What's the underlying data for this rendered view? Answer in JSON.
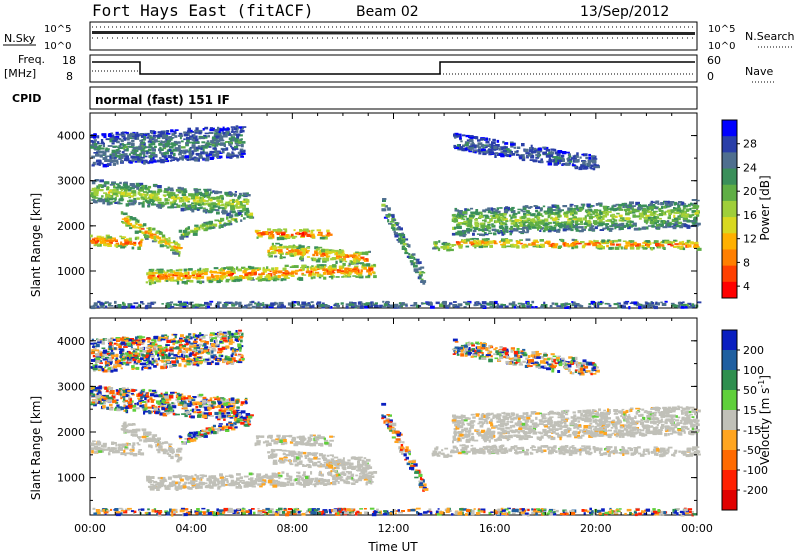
{
  "header": {
    "title": "Fort Hays East (fitACF)",
    "beam": "Beam 02",
    "date": "13/Sep/2012"
  },
  "panels": {
    "nsky_label": "N.Sky",
    "nsky_ticks": [
      "10^5",
      "10^0"
    ],
    "nsearch_label": "N.Search",
    "nsearch_ticks": [
      "10^5",
      "10^0"
    ],
    "freq_label_1": "Freq.",
    "freq_label_2": "[MHz]",
    "freq_ticks": [
      "18",
      "8"
    ],
    "nave_label": "Nave",
    "nave_ticks": [
      "60",
      "0"
    ],
    "cpid_label": "CPID",
    "cpid_text": "normal (fast) 151 IF"
  },
  "chart_data": [
    {
      "type": "heatmap",
      "title": "",
      "xlabel": "Time UT",
      "ylabel": "Slant Range [km]",
      "xticks": [
        "00:00",
        "04:00",
        "08:00",
        "12:00",
        "16:00",
        "20:00",
        "00:00"
      ],
      "yticks": [
        1000,
        2000,
        3000,
        4000
      ],
      "xlim": [
        0,
        24
      ],
      "ylim": [
        180,
        4500
      ],
      "colorbar": {
        "label": "Power [dB]",
        "ticks": [
          "4",
          "8",
          "12",
          "16",
          "20",
          "24",
          "28"
        ],
        "colors": [
          "#0000ff",
          "#2a3fa8",
          "#4f6f8f",
          "#3a8f5a",
          "#5fae45",
          "#9fcf3a",
          "#d8d820",
          "#ffb000",
          "#ff7f00",
          "#ff4000",
          "#ff0000"
        ]
      }
    },
    {
      "type": "heatmap",
      "title": "",
      "xlabel": "Time UT",
      "ylabel": "Slant Range [km]",
      "xticks": [
        "00:00",
        "04:00",
        "08:00",
        "12:00",
        "16:00",
        "20:00",
        "00:00"
      ],
      "yticks": [
        1000,
        2000,
        3000,
        4000
      ],
      "xlim": [
        0,
        24
      ],
      "ylim": [
        180,
        4500
      ],
      "colorbar": {
        "label": "Velocity [m s",
        "label_sup": "-1",
        "label_end": "]",
        "ticks": [
          "200",
          "100",
          "50",
          "15",
          "-15",
          "-50",
          "-100",
          "-200"
        ],
        "colors": [
          "#0a1fc0",
          "#1f5fa0",
          "#2f8f4f",
          "#5fcf3a",
          "#c0c0b8",
          "#ffa520",
          "#ff6a00",
          "#ff2000",
          "#e00000"
        ],
        "ground_scatter": "#c0c0b8"
      }
    }
  ]
}
